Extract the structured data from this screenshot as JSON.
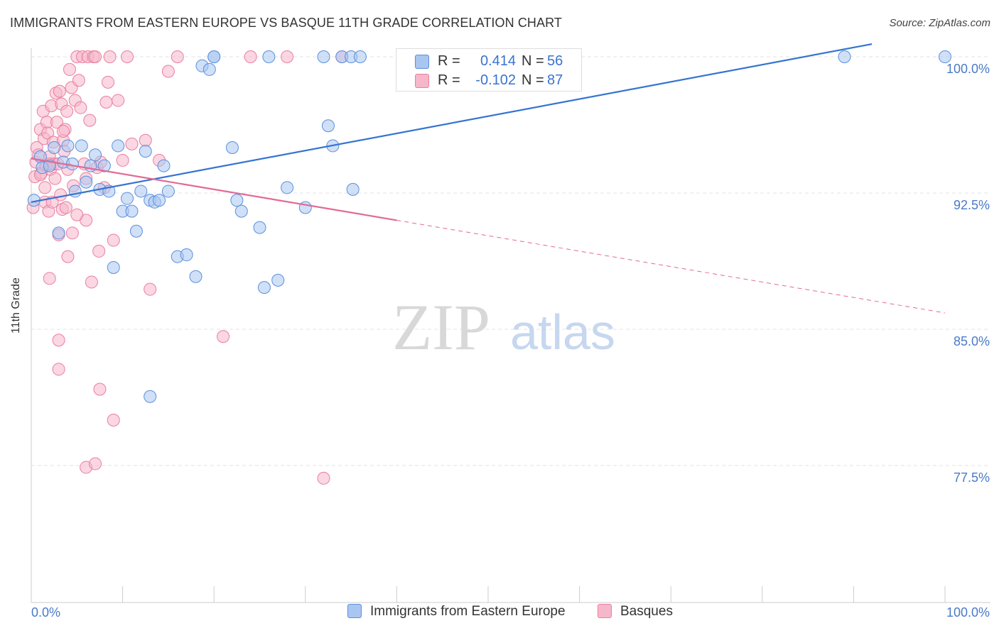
{
  "title": "IMMIGRANTS FROM EASTERN EUROPE VS BASQUE 11TH GRADE CORRELATION CHART",
  "source": "Source: ZipAtlas.com",
  "watermark": {
    "zip": "ZIP",
    "atlas": "atlas"
  },
  "legend": {
    "r_label": "R =",
    "n_label": "N =",
    "rows": [
      {
        "r": "0.414",
        "n": "56"
      },
      {
        "r": "-0.102",
        "n": "87"
      }
    ]
  },
  "colors": {
    "blue_fill": "#a9c6f0",
    "blue_stroke": "#5b8fde",
    "blue_line": "#3474d0",
    "pink_fill": "#f6b7cb",
    "pink_stroke": "#ea7ea0",
    "pink_line": "#e26a94",
    "grid": "#e3e3e3",
    "tick_text": "#4a7ac8"
  },
  "chart_data": {
    "type": "scatter",
    "title": "IMMIGRANTS FROM EASTERN EUROPE VS BASQUE 11TH GRADE CORRELATION CHART",
    "xlabel": "",
    "ylabel": "11th Grade",
    "xlim": [
      0,
      100
    ],
    "ylim": [
      70.0,
      100.8
    ],
    "x_tick_labels": [
      "0.0%",
      "100.0%"
    ],
    "y_ticks": [
      77.5,
      85.0,
      92.5,
      100.0
    ],
    "y_tick_labels": [
      "77.5%",
      "85.0%",
      "92.5%",
      "100.0%"
    ],
    "grid": true,
    "series": [
      {
        "name": "Immigrants from Eastern Europe",
        "color": "blue",
        "trend": {
          "x": [
            0,
            92
          ],
          "y": [
            92.0,
            100.7
          ],
          "dashed_to": null
        },
        "points": [
          [
            0.3,
            92.1
          ],
          [
            1.0,
            94.5
          ],
          [
            1.2,
            93.9
          ],
          [
            2.0,
            94.0
          ],
          [
            2.5,
            95.0
          ],
          [
            3.0,
            90.3
          ],
          [
            3.5,
            94.2
          ],
          [
            4.0,
            95.1
          ],
          [
            4.5,
            94.1
          ],
          [
            5.5,
            95.1
          ],
          [
            6.0,
            93.1
          ],
          [
            6.5,
            94.0
          ],
          [
            7.0,
            94.6
          ],
          [
            7.5,
            92.7
          ],
          [
            8.0,
            94.0
          ],
          [
            8.5,
            92.6
          ],
          [
            9.0,
            88.4
          ],
          [
            9.5,
            95.1
          ],
          [
            10.0,
            91.5
          ],
          [
            10.5,
            92.2
          ],
          [
            11.0,
            91.5
          ],
          [
            11.5,
            90.4
          ],
          [
            12.0,
            92.6
          ],
          [
            12.5,
            94.8
          ],
          [
            13.0,
            92.1
          ],
          [
            13.5,
            92.0
          ],
          [
            14.0,
            92.1
          ],
          [
            14.5,
            94.0
          ],
          [
            15.0,
            92.6
          ],
          [
            16.0,
            89.0
          ],
          [
            17.0,
            89.1
          ],
          [
            18.0,
            87.9
          ],
          [
            18.7,
            99.5
          ],
          [
            19.5,
            99.3
          ],
          [
            20.0,
            100.0
          ],
          [
            22.0,
            95.0
          ],
          [
            22.5,
            92.1
          ],
          [
            23.0,
            91.5
          ],
          [
            25.0,
            90.6
          ],
          [
            25.5,
            87.3
          ],
          [
            27.0,
            87.7
          ],
          [
            28.0,
            92.8
          ],
          [
            30.0,
            91.7
          ],
          [
            32.0,
            100.0
          ],
          [
            32.5,
            96.2
          ],
          [
            33.0,
            95.1
          ],
          [
            34.0,
            100.0
          ],
          [
            35.0,
            100.0
          ],
          [
            35.2,
            92.7
          ],
          [
            36.0,
            100.0
          ],
          [
            20.0,
            100.0
          ],
          [
            26.0,
            100.0
          ],
          [
            13.0,
            81.3
          ],
          [
            89.0,
            100.0
          ],
          [
            100.0,
            100.0
          ],
          [
            4.8,
            92.6
          ]
        ]
      },
      {
        "name": "Basques",
        "color": "pink",
        "trend": {
          "x": [
            0,
            40
          ],
          "y": [
            94.4,
            91.0
          ],
          "dashed_to": [
            100,
            85.9
          ]
        },
        "points": [
          [
            0.2,
            91.7
          ],
          [
            0.4,
            93.4
          ],
          [
            0.5,
            94.2
          ],
          [
            0.6,
            95.0
          ],
          [
            0.8,
            94.6
          ],
          [
            1.0,
            96.0
          ],
          [
            1.1,
            93.6
          ],
          [
            1.3,
            97.0
          ],
          [
            1.4,
            95.5
          ],
          [
            1.5,
            92.0
          ],
          [
            1.6,
            94.0
          ],
          [
            1.7,
            96.4
          ],
          [
            1.8,
            95.8
          ],
          [
            1.9,
            91.5
          ],
          [
            2.0,
            94.5
          ],
          [
            2.1,
            93.8
          ],
          [
            2.2,
            97.3
          ],
          [
            2.3,
            92.0
          ],
          [
            2.4,
            95.3
          ],
          [
            2.5,
            94.1
          ],
          [
            2.6,
            93.3
          ],
          [
            2.7,
            98.0
          ],
          [
            2.8,
            96.4
          ],
          [
            2.9,
            94.1
          ],
          [
            3.0,
            90.2
          ],
          [
            3.1,
            98.1
          ],
          [
            3.2,
            92.4
          ],
          [
            3.3,
            97.4
          ],
          [
            3.4,
            91.6
          ],
          [
            3.5,
            95.4
          ],
          [
            3.6,
            94.8
          ],
          [
            3.7,
            96.0
          ],
          [
            3.8,
            91.7
          ],
          [
            3.9,
            97.0
          ],
          [
            4.0,
            93.8
          ],
          [
            4.2,
            99.3
          ],
          [
            4.4,
            98.3
          ],
          [
            4.5,
            90.3
          ],
          [
            4.6,
            92.9
          ],
          [
            4.8,
            97.6
          ],
          [
            5.0,
            100.0
          ],
          [
            5.2,
            98.7
          ],
          [
            5.4,
            97.2
          ],
          [
            5.6,
            100.0
          ],
          [
            5.8,
            94.1
          ],
          [
            6.0,
            91.0
          ],
          [
            6.2,
            100.0
          ],
          [
            6.4,
            96.5
          ],
          [
            6.6,
            87.6
          ],
          [
            6.8,
            100.0
          ],
          [
            7.0,
            100.0
          ],
          [
            7.2,
            93.9
          ],
          [
            7.4,
            89.3
          ],
          [
            7.6,
            94.2
          ],
          [
            8.0,
            92.8
          ],
          [
            8.2,
            97.5
          ],
          [
            8.4,
            98.6
          ],
          [
            8.6,
            100.0
          ],
          [
            9.0,
            89.9
          ],
          [
            9.5,
            97.6
          ],
          [
            10.0,
            94.3
          ],
          [
            10.5,
            100.0
          ],
          [
            11.0,
            95.2
          ],
          [
            12.5,
            95.4
          ],
          [
            13.0,
            87.2
          ],
          [
            14.0,
            94.3
          ],
          [
            15.0,
            99.2
          ],
          [
            16.0,
            100.0
          ],
          [
            2.0,
            87.8
          ],
          [
            3.0,
            84.4
          ],
          [
            3.0,
            82.8
          ],
          [
            6.0,
            77.4
          ],
          [
            7.0,
            77.6
          ],
          [
            7.5,
            81.7
          ],
          [
            9.0,
            80.0
          ],
          [
            21.0,
            84.6
          ],
          [
            24.0,
            100.0
          ],
          [
            28.0,
            100.0
          ],
          [
            32.0,
            76.8
          ],
          [
            34.0,
            100.0
          ],
          [
            4.0,
            89.0
          ],
          [
            5.0,
            91.3
          ],
          [
            1.0,
            93.5
          ],
          [
            2.0,
            94.1
          ],
          [
            3.5,
            95.9
          ],
          [
            1.5,
            92.8
          ],
          [
            6.0,
            93.3
          ]
        ]
      }
    ],
    "series_labels": [
      "Immigrants from Eastern Europe",
      "Basques"
    ]
  }
}
